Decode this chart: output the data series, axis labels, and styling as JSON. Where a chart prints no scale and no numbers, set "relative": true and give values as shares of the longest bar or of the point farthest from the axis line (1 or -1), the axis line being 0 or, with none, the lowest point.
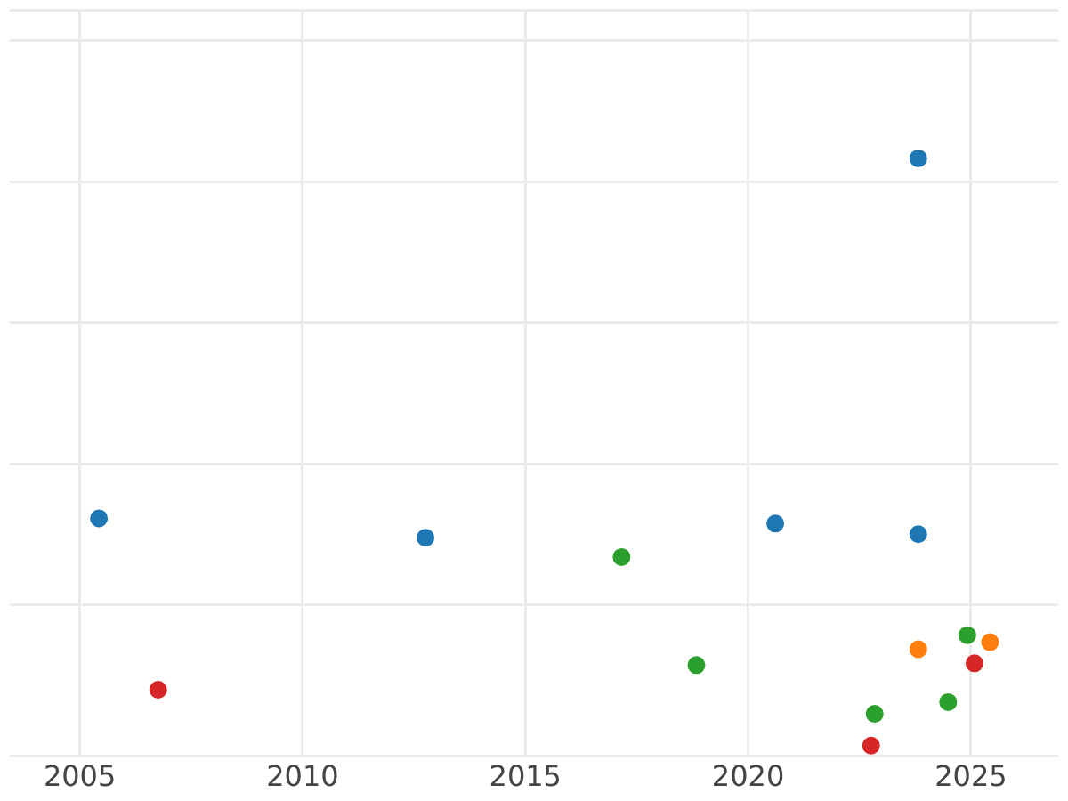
{
  "chart_data": {
    "type": "scatter",
    "relative": true,
    "grid": true,
    "legend": false,
    "marker": "circle",
    "xlim": [
      2003.43,
      2026.96
    ],
    "xticks": [
      2005,
      2010,
      2015,
      2020,
      2025
    ],
    "series": [
      {
        "color": "#1f77b4",
        "x": [
          2005.43,
          2012.76,
          2020.61,
          2023.82,
          2023.82
        ],
        "values": [
          0.387,
          0.354,
          0.378,
          0.36,
          1
        ]
      },
      {
        "color": "#ff7f0e",
        "x": [
          2023.82,
          2025.43
        ],
        "values": [
          0.164,
          0.176
        ]
      },
      {
        "color": "#2ca02c",
        "x": [
          2017.16,
          2018.84,
          2022.84,
          2024.49,
          2024.92
        ],
        "values": [
          0.321,
          0.137,
          0.054,
          0.074,
          0.188
        ]
      },
      {
        "color": "#d62728",
        "x": [
          2006.76,
          2022.76,
          2025.08
        ],
        "values": [
          0.095,
          0,
          0.14
        ]
      }
    ]
  }
}
